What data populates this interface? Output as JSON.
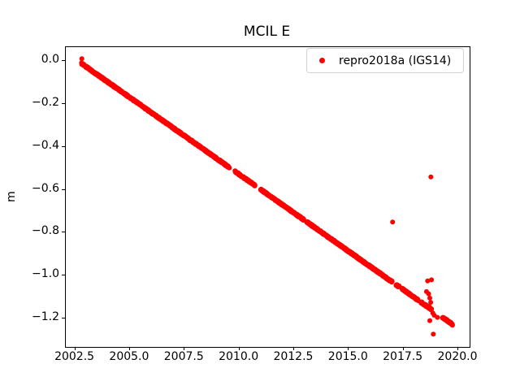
{
  "figure": {
    "title": "MCIL E",
    "ylabel": "m",
    "background_color": "#ffffff",
    "legend": {
      "label": "repro2018a (IGS14)",
      "marker": "red-dot-icon",
      "marker_color": "#ff0000",
      "border_color": "#d2d2d2"
    }
  },
  "chart_data": {
    "type": "scatter",
    "title": "MCIL E",
    "xlabel": "",
    "ylabel": "m",
    "legend_entries": [
      "repro2018a (IGS14)"
    ],
    "legend_position": "upper right",
    "grid": false,
    "marker_color": "#ff0000",
    "marker_diameter_px": 6,
    "xlim": [
      2002.07,
      2020.52
    ],
    "ylim": [
      -1.333,
      0.066
    ],
    "xticks": [
      2002.5,
      2005.0,
      2007.5,
      2010.0,
      2012.5,
      2015.0,
      2017.5,
      2020.0
    ],
    "xtick_labels": [
      "2002.5",
      "2005.0",
      "2007.5",
      "2010.0",
      "2012.5",
      "2015.0",
      "2017.5",
      "2020.0"
    ],
    "yticks": [
      0.0,
      -0.2,
      -0.4,
      -0.6,
      -0.8,
      -1.0,
      -1.2
    ],
    "ytick_labels": [
      "0.0",
      "−0.2",
      "−0.4",
      "−0.6",
      "−0.8",
      "−1.0",
      "−1.2"
    ],
    "series_name": "repro2018a (IGS14)",
    "trend": {
      "t0": 2002.85,
      "v0": -0.015,
      "slope_m_per_yr": -0.0718
    },
    "noise_amplitude_m": 0.008,
    "sample_step_yr": 0.008,
    "segments": [
      [
        2002.79,
        2009.55
      ],
      [
        2009.8,
        2010.72
      ],
      [
        2010.97,
        2011.7
      ],
      [
        2011.74,
        2012.16
      ],
      [
        2012.21,
        2012.53
      ],
      [
        2012.58,
        2012.95
      ],
      [
        2013.08,
        2016.99
      ],
      [
        2017.16,
        2017.3
      ],
      [
        2017.42,
        2018.18
      ],
      [
        2018.3,
        2018.78
      ],
      [
        2019.28,
        2019.74
      ]
    ],
    "outliers": [
      [
        2002.8,
        0.012
      ],
      [
        2017.0,
        -0.75
      ],
      [
        2018.75,
        -0.54
      ],
      [
        2018.6,
        -1.025
      ],
      [
        2018.78,
        -1.02
      ],
      [
        2018.55,
        -1.075
      ],
      [
        2018.65,
        -1.085
      ],
      [
        2018.7,
        -1.105
      ],
      [
        2018.74,
        -1.125
      ],
      [
        2018.68,
        -1.145
      ],
      [
        2018.78,
        -1.155
      ],
      [
        2018.84,
        -1.175
      ],
      [
        2018.9,
        -1.185
      ],
      [
        2018.7,
        -1.21
      ],
      [
        2019.05,
        -1.195
      ],
      [
        2018.86,
        -1.273
      ]
    ]
  }
}
